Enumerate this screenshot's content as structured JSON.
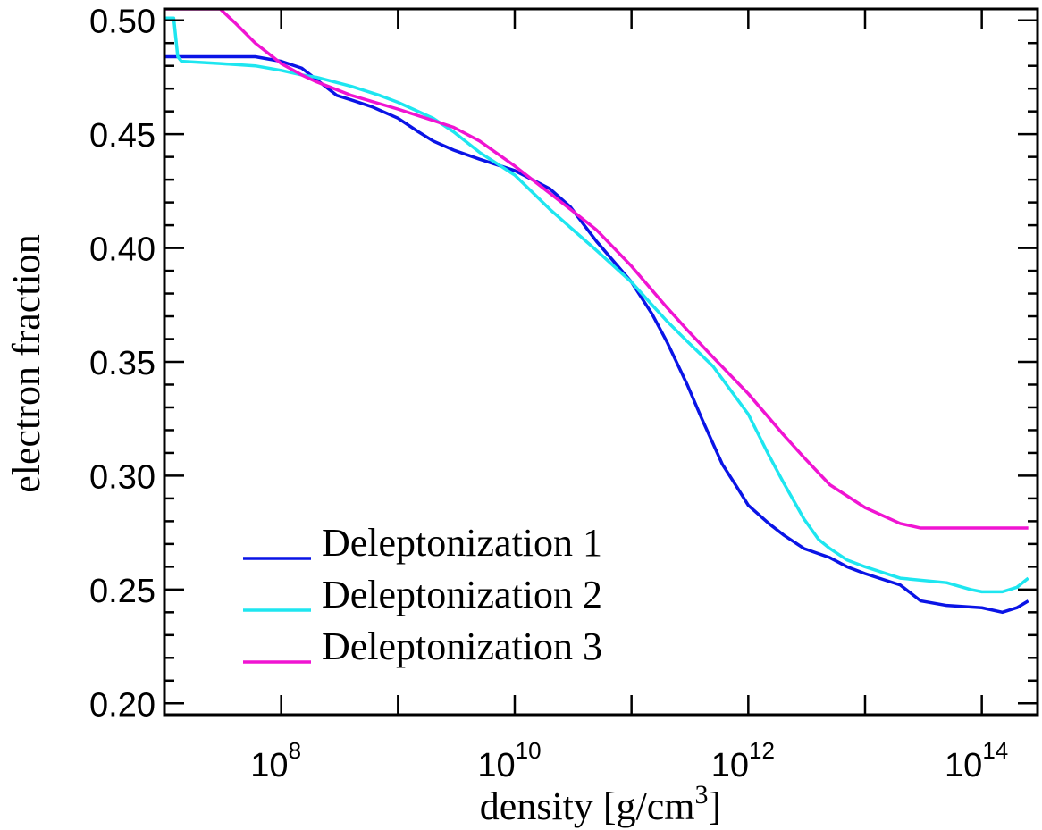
{
  "chart_data": {
    "type": "line",
    "xlabel": "density [g/cm",
    "xlabel_superscript": "3",
    "xlabel_suffix": "]",
    "ylabel": "electron fraction",
    "xscale": "log",
    "xlim": [
      10000000,
      300000000000000
    ],
    "ylim": [
      0.195,
      0.505
    ],
    "x_ticks": [
      {
        "value": 100000000,
        "base": "10",
        "exp": "8"
      },
      {
        "value": 10000000000,
        "base": "10",
        "exp": "10"
      },
      {
        "value": 1000000000000,
        "base": "10",
        "exp": "12"
      },
      {
        "value": 100000000000000,
        "base": "10",
        "exp": "14"
      }
    ],
    "y_ticks": [
      {
        "value": 0.2,
        "label": "0.20"
      },
      {
        "value": 0.25,
        "label": "0.25"
      },
      {
        "value": 0.3,
        "label": "0.30"
      },
      {
        "value": 0.35,
        "label": "0.35"
      },
      {
        "value": 0.4,
        "label": "0.40"
      },
      {
        "value": 0.45,
        "label": "0.45"
      },
      {
        "value": 0.5,
        "label": "0.50"
      }
    ],
    "legend_position": "bottom-left",
    "grid": false,
    "series": [
      {
        "name": "Deleptonization 1",
        "color": "#0a14e6",
        "points": [
          [
            10000000,
            0.484
          ],
          [
            30000000,
            0.484
          ],
          [
            60000000,
            0.484
          ],
          [
            100000000,
            0.482
          ],
          [
            150000000,
            0.479
          ],
          [
            200000000,
            0.474
          ],
          [
            300000000,
            0.467
          ],
          [
            400000000,
            0.465
          ],
          [
            600000000,
            0.462
          ],
          [
            1000000000,
            0.457
          ],
          [
            1500000000,
            0.451
          ],
          [
            2000000000,
            0.447
          ],
          [
            3000000000,
            0.443
          ],
          [
            5000000000,
            0.439
          ],
          [
            10000000000,
            0.434
          ],
          [
            20000000000,
            0.426
          ],
          [
            30000000000,
            0.418
          ],
          [
            50000000000,
            0.403
          ],
          [
            100000000000,
            0.385
          ],
          [
            150000000000,
            0.371
          ],
          [
            200000000000,
            0.359
          ],
          [
            300000000000,
            0.34
          ],
          [
            400000000000,
            0.325
          ],
          [
            600000000000,
            0.305
          ],
          [
            800000000000,
            0.295
          ],
          [
            1000000000000,
            0.287
          ],
          [
            1500000000000,
            0.279
          ],
          [
            2000000000000,
            0.274
          ],
          [
            3000000000000,
            0.268
          ],
          [
            5000000000000,
            0.264
          ],
          [
            7000000000000,
            0.26
          ],
          [
            10000000000000,
            0.257
          ],
          [
            20000000000000,
            0.252
          ],
          [
            30000000000000,
            0.245
          ],
          [
            50000000000000,
            0.243
          ],
          [
            100000000000000,
            0.242
          ],
          [
            150000000000000,
            0.24
          ],
          [
            200000000000000,
            0.242
          ],
          [
            250000000000000,
            0.245
          ]
        ]
      },
      {
        "name": "Deleptonization 2",
        "color": "#1ee6f0",
        "points": [
          [
            10000000,
            0.501
          ],
          [
            12000000,
            0.501
          ],
          [
            13000000,
            0.484
          ],
          [
            14000000,
            0.482
          ],
          [
            30000000,
            0.481
          ],
          [
            60000000,
            0.48
          ],
          [
            100000000,
            0.478
          ],
          [
            150000000,
            0.476
          ],
          [
            200000000,
            0.475
          ],
          [
            400000000,
            0.471
          ],
          [
            700000000,
            0.467
          ],
          [
            1000000000,
            0.464
          ],
          [
            2000000000,
            0.457
          ],
          [
            3000000000,
            0.451
          ],
          [
            5000000000,
            0.442
          ],
          [
            10000000000,
            0.432
          ],
          [
            20000000000,
            0.417
          ],
          [
            30000000000,
            0.409
          ],
          [
            50000000000,
            0.399
          ],
          [
            100000000000,
            0.385
          ],
          [
            150000000000,
            0.375
          ],
          [
            200000000000,
            0.368
          ],
          [
            300000000000,
            0.359
          ],
          [
            500000000000,
            0.348
          ],
          [
            1000000000000,
            0.327
          ],
          [
            1500000000000,
            0.309
          ],
          [
            2000000000000,
            0.297
          ],
          [
            3000000000000,
            0.281
          ],
          [
            4000000000000,
            0.272
          ],
          [
            5000000000000,
            0.268
          ],
          [
            7000000000000,
            0.263
          ],
          [
            10000000000000,
            0.26
          ],
          [
            20000000000000,
            0.255
          ],
          [
            50000000000000,
            0.253
          ],
          [
            80000000000000,
            0.25
          ],
          [
            100000000000000,
            0.249
          ],
          [
            150000000000000,
            0.249
          ],
          [
            200000000000000,
            0.251
          ],
          [
            250000000000000,
            0.255
          ]
        ]
      },
      {
        "name": "Deleptonization 3",
        "color": "#f014d2",
        "points": [
          [
            10000000,
            0.505
          ],
          [
            25000000,
            0.505
          ],
          [
            30000000,
            0.505
          ],
          [
            40000000,
            0.499
          ],
          [
            60000000,
            0.49
          ],
          [
            100000000,
            0.481
          ],
          [
            150000000,
            0.476
          ],
          [
            200000000,
            0.473
          ],
          [
            400000000,
            0.467
          ],
          [
            1000000000,
            0.461
          ],
          [
            2000000000,
            0.456
          ],
          [
            3000000000,
            0.453
          ],
          [
            5000000000,
            0.447
          ],
          [
            10000000000,
            0.436
          ],
          [
            20000000000,
            0.424
          ],
          [
            30000000000,
            0.417
          ],
          [
            50000000000,
            0.408
          ],
          [
            100000000000,
            0.392
          ],
          [
            200000000000,
            0.374
          ],
          [
            300000000000,
            0.364
          ],
          [
            500000000000,
            0.352
          ],
          [
            1000000000000,
            0.336
          ],
          [
            2000000000000,
            0.318
          ],
          [
            3000000000000,
            0.308
          ],
          [
            5000000000000,
            0.296
          ],
          [
            10000000000000,
            0.286
          ],
          [
            20000000000000,
            0.279
          ],
          [
            30000000000000,
            0.277
          ],
          [
            50000000000000,
            0.277
          ],
          [
            100000000000000,
            0.277
          ],
          [
            250000000000000,
            0.277
          ]
        ]
      }
    ]
  }
}
